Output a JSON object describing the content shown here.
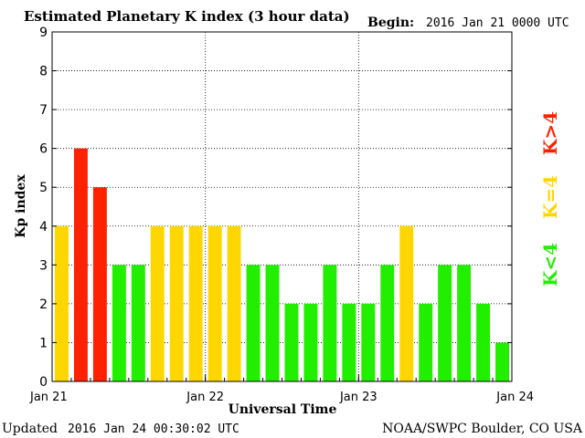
{
  "colors": {
    "k_below_4": "#22ee00",
    "k_equal_4": "#ffd700",
    "k_above_4": "#ff2200"
  },
  "header": {
    "title": "Estimated Planetary K index (3 hour data)",
    "begin_label": "Begin:",
    "begin_value": "2016 Jan 21 0000 UTC"
  },
  "footer": {
    "updated_label": "Updated",
    "updated_value": "2016 Jan 24 00:30:02 UTC",
    "source": "NOAA/SWPC Boulder, CO USA"
  },
  "legend": [
    {
      "text": "K<4",
      "color_key": "k_below_4"
    },
    {
      "text": "K=4",
      "color_key": "k_equal_4"
    },
    {
      "text": "K>4",
      "color_key": "k_above_4"
    }
  ],
  "chart_data": {
    "type": "bar",
    "title": "Estimated Planetary K index (3 hour data)",
    "xlabel": "Universal Time",
    "ylabel": "Kp index",
    "ylim": [
      0,
      9
    ],
    "yticks": [
      0,
      1,
      2,
      3,
      4,
      5,
      6,
      7,
      8,
      9
    ],
    "xticks": [
      "Jan 21",
      "Jan 22",
      "Jan 23",
      "Jan 24"
    ],
    "grid": true,
    "interval_hours": 3,
    "values": [
      4,
      6,
      5,
      3,
      3,
      4,
      4,
      4,
      4,
      4,
      3,
      3,
      2,
      2,
      3,
      2,
      2,
      3,
      4,
      2,
      3,
      3,
      2,
      1
    ]
  }
}
